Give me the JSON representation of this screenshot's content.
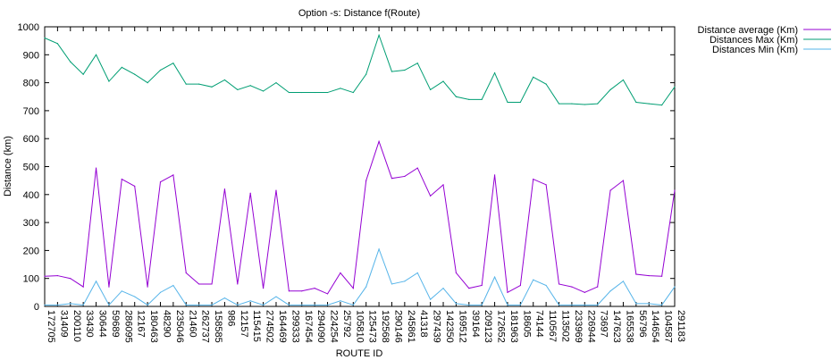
{
  "chart_data": {
    "type": "line",
    "title": "Option -s: Distance f(Route)",
    "xlabel": "ROUTE ID",
    "ylabel": "Distance (km)",
    "ylim": [
      0,
      1000
    ],
    "yticks": [
      0,
      100,
      200,
      300,
      400,
      500,
      600,
      700,
      800,
      900,
      1000
    ],
    "grid": false,
    "legend_position": "top-right, outside plot",
    "categories": [
      "172705",
      "31409",
      "200110",
      "33430",
      "30644",
      "59689",
      "286095",
      "12167",
      "180463",
      "48290",
      "235046",
      "21460",
      "262737",
      "158585",
      "986",
      "12157",
      "115415",
      "274502",
      "164469",
      "299333",
      "167454",
      "294090",
      "224254",
      "25792",
      "105810",
      "125473",
      "192568",
      "290146",
      "245861",
      "41318",
      "297439",
      "142350",
      "169512",
      "39164",
      "209123",
      "172652",
      "181963",
      "18605",
      "74144",
      "110567",
      "113502",
      "233969",
      "226944",
      "73697",
      "147623",
      "165538",
      "56796",
      "144654",
      "104587",
      "291183"
    ],
    "xtick_labels": [
      "172705",
      "31409",
      "200110",
      "33430",
      "30644",
      "59689",
      "286095",
      "12167",
      "180463",
      "48290",
      "235046",
      "21460",
      "262737",
      "158585",
      "986",
      "12157",
      "115415",
      "274502",
      "164469",
      "299333",
      "167454",
      "294090",
      "224254",
      "25792",
      "105810",
      "125473",
      "192568",
      "290146",
      "245861",
      "41318",
      "297439",
      "142350",
      "169512",
      "39164",
      "209123",
      "172652",
      "181963",
      "18605",
      "74144",
      "110567",
      "113502",
      "233969",
      "226944",
      "73697",
      "147623",
      "165538",
      "56796",
      "144654",
      "104587",
      "291183"
    ],
    "series": [
      {
        "name": "Distance average (Km)",
        "color": "#9400d3",
        "values": [
          108,
          110,
          100,
          70,
          495,
          70,
          455,
          430,
          70,
          445,
          470,
          120,
          80,
          80,
          420,
          80,
          405,
          65,
          415,
          55,
          55,
          65,
          45,
          120,
          65,
          450,
          590,
          458,
          465,
          495,
          395,
          435,
          120,
          65,
          75,
          470,
          50,
          75,
          455,
          435,
          80,
          70,
          50,
          70,
          415,
          450,
          115,
          110,
          108,
          415
        ]
      },
      {
        "name": "Distances Max (Km)",
        "color": "#009e73",
        "values": [
          960,
          940,
          875,
          830,
          900,
          805,
          855,
          830,
          800,
          845,
          870,
          795,
          795,
          785,
          810,
          775,
          790,
          770,
          800,
          765,
          765,
          765,
          765,
          780,
          765,
          830,
          970,
          840,
          845,
          870,
          775,
          805,
          750,
          740,
          740,
          835,
          730,
          730,
          820,
          795,
          725,
          725,
          722,
          725,
          775,
          810,
          730,
          725,
          720,
          785
        ]
      },
      {
        "name": "Distances Min (Km)",
        "color": "#56b4e9",
        "values": [
          5,
          5,
          10,
          5,
          90,
          5,
          55,
          35,
          5,
          50,
          75,
          5,
          5,
          5,
          30,
          5,
          20,
          5,
          35,
          5,
          5,
          5,
          5,
          20,
          5,
          70,
          205,
          80,
          90,
          120,
          25,
          65,
          10,
          5,
          5,
          105,
          5,
          5,
          95,
          75,
          5,
          5,
          5,
          5,
          55,
          90,
          10,
          10,
          5,
          70
        ]
      }
    ]
  }
}
